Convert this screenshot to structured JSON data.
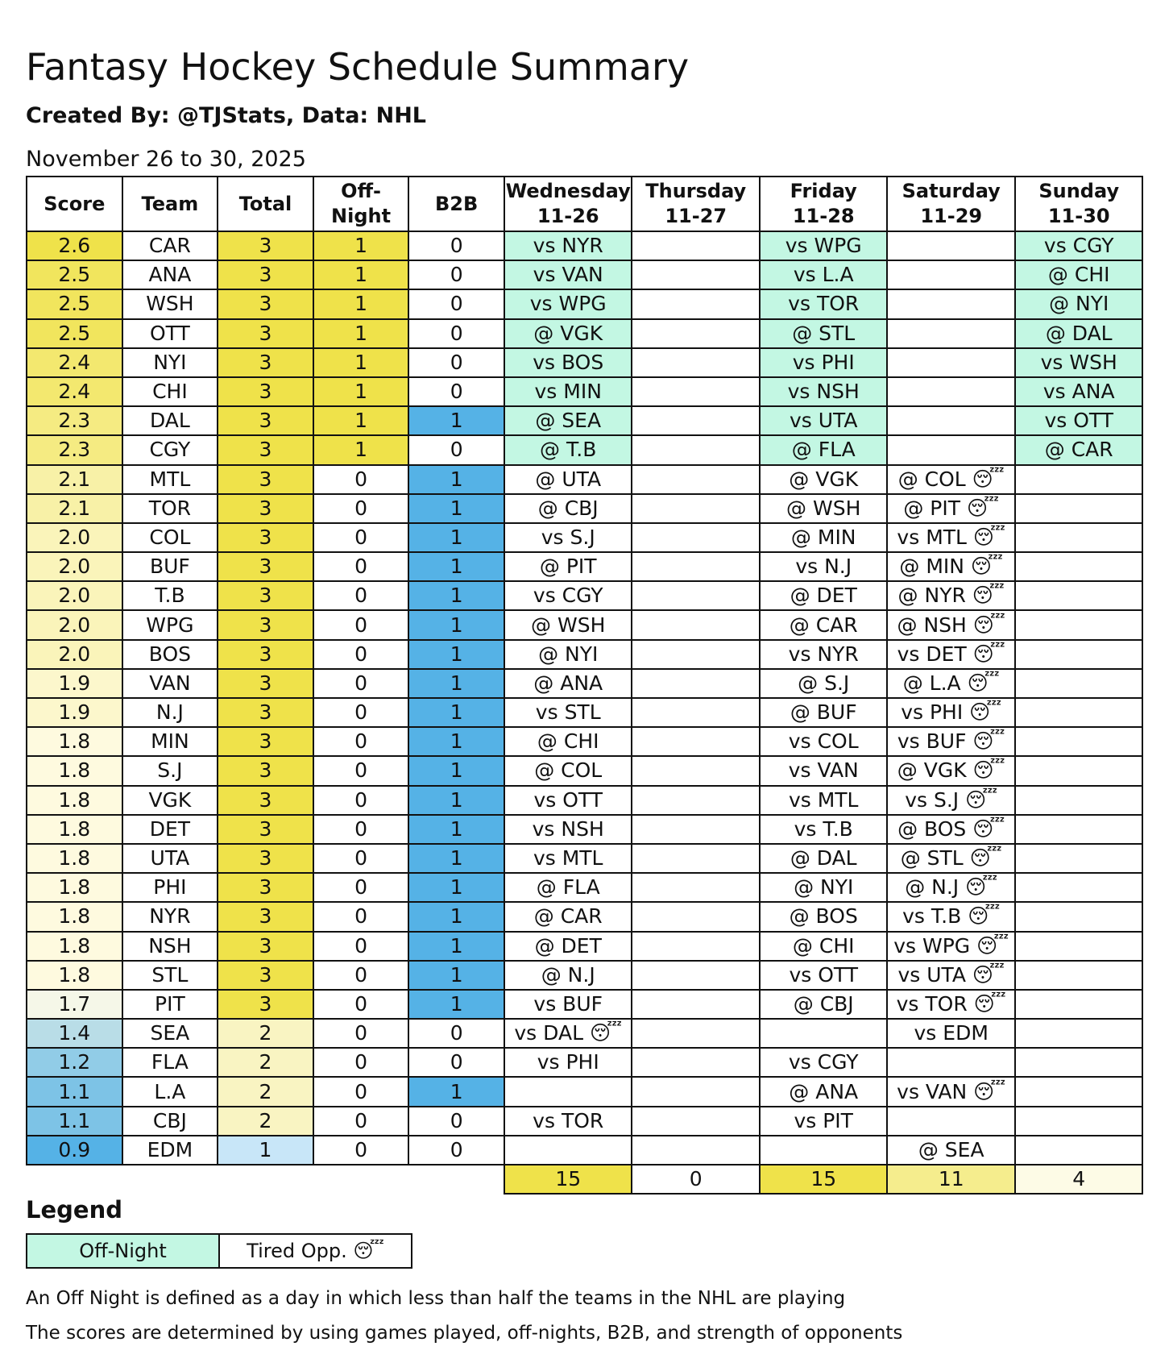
{
  "header": {
    "title": "Fantasy Hockey Schedule Summary",
    "subtitle": "Created By: @TJStats, Data: NHL",
    "date_range": "November 26 to 30, 2025"
  },
  "table": {
    "columns": [
      "Score",
      "Team",
      "Total",
      "Off-\nNight",
      "B2B",
      "Wednesday\n11-26",
      "Thursday\n11-27",
      "Friday\n11-28",
      "Saturday\n11-29",
      "Sunday\n11-30"
    ],
    "rows": [
      [
        "2.6",
        "CAR",
        "3",
        "1",
        "0",
        "vs NYR",
        null,
        "vs WPG",
        null,
        "vs CGY"
      ],
      [
        "2.5",
        "ANA",
        "3",
        "1",
        "0",
        "vs VAN",
        null,
        "vs L.A",
        null,
        "@ CHI"
      ],
      [
        "2.5",
        "WSH",
        "3",
        "1",
        "0",
        "vs WPG",
        null,
        "vs TOR",
        null,
        "@ NYI"
      ],
      [
        "2.5",
        "OTT",
        "3",
        "1",
        "0",
        "@ VGK",
        null,
        "@ STL",
        null,
        "@ DAL"
      ],
      [
        "2.4",
        "NYI",
        "3",
        "1",
        "0",
        "vs BOS",
        null,
        "vs PHI",
        null,
        "vs WSH"
      ],
      [
        "2.4",
        "CHI",
        "3",
        "1",
        "0",
        "vs MIN",
        null,
        "vs NSH",
        null,
        "vs ANA"
      ],
      [
        "2.3",
        "DAL",
        "3",
        "1",
        "1",
        "@ SEA",
        null,
        "vs UTA",
        null,
        "vs OTT"
      ],
      [
        "2.3",
        "CGY",
        "3",
        "1",
        "0",
        "@ T.B",
        null,
        "@ FLA",
        null,
        "@ CAR"
      ],
      [
        "2.1",
        "MTL",
        "3",
        "0",
        "1",
        "@ UTA",
        null,
        "@ VGK",
        "@ COL 😴",
        null
      ],
      [
        "2.1",
        "TOR",
        "3",
        "0",
        "1",
        "@ CBJ",
        null,
        "@ WSH",
        "@ PIT 😴",
        null
      ],
      [
        "2.0",
        "COL",
        "3",
        "0",
        "1",
        "vs S.J",
        null,
        "@ MIN",
        "vs MTL 😴",
        null
      ],
      [
        "2.0",
        "BUF",
        "3",
        "0",
        "1",
        "@ PIT",
        null,
        "vs N.J",
        "@ MIN 😴",
        null
      ],
      [
        "2.0",
        "T.B",
        "3",
        "0",
        "1",
        "vs CGY",
        null,
        "@ DET",
        "@ NYR 😴",
        null
      ],
      [
        "2.0",
        "WPG",
        "3",
        "0",
        "1",
        "@ WSH",
        null,
        "@ CAR",
        "@ NSH 😴",
        null
      ],
      [
        "2.0",
        "BOS",
        "3",
        "0",
        "1",
        "@ NYI",
        null,
        "vs NYR",
        "vs DET 😴",
        null
      ],
      [
        "1.9",
        "VAN",
        "3",
        "0",
        "1",
        "@ ANA",
        null,
        "@ S.J",
        "@ L.A 😴",
        null
      ],
      [
        "1.9",
        "N.J",
        "3",
        "0",
        "1",
        "vs STL",
        null,
        "@ BUF",
        "vs PHI 😴",
        null
      ],
      [
        "1.8",
        "MIN",
        "3",
        "0",
        "1",
        "@ CHI",
        null,
        "vs COL",
        "vs BUF 😴",
        null
      ],
      [
        "1.8",
        "S.J",
        "3",
        "0",
        "1",
        "@ COL",
        null,
        "vs VAN",
        "@ VGK 😴",
        null
      ],
      [
        "1.8",
        "VGK",
        "3",
        "0",
        "1",
        "vs OTT",
        null,
        "vs MTL",
        "vs S.J 😴",
        null
      ],
      [
        "1.8",
        "DET",
        "3",
        "0",
        "1",
        "vs NSH",
        null,
        "vs T.B",
        "@ BOS 😴",
        null
      ],
      [
        "1.8",
        "UTA",
        "3",
        "0",
        "1",
        "vs MTL",
        null,
        "@ DAL",
        "@ STL 😴",
        null
      ],
      [
        "1.8",
        "PHI",
        "3",
        "0",
        "1",
        "@ FLA",
        null,
        "@ NYI",
        "@ N.J 😴",
        null
      ],
      [
        "1.8",
        "NYR",
        "3",
        "0",
        "1",
        "@ CAR",
        null,
        "@ BOS",
        "vs T.B 😴",
        null
      ],
      [
        "1.8",
        "NSH",
        "3",
        "0",
        "1",
        "@ DET",
        null,
        "@ CHI",
        "vs WPG 😴",
        null
      ],
      [
        "1.8",
        "STL",
        "3",
        "0",
        "1",
        "@ N.J",
        null,
        "vs OTT",
        "vs UTA 😴",
        null
      ],
      [
        "1.7",
        "PIT",
        "3",
        "0",
        "1",
        "vs BUF",
        null,
        "@ CBJ",
        "vs TOR 😴",
        null
      ],
      [
        "1.4",
        "SEA",
        "2",
        "0",
        "0",
        "vs DAL 😴",
        null,
        null,
        "vs EDM",
        null
      ],
      [
        "1.2",
        "FLA",
        "2",
        "0",
        "0",
        "vs PHI",
        null,
        "vs CGY",
        null,
        null
      ],
      [
        "1.1",
        "L.A",
        "2",
        "0",
        "1",
        null,
        null,
        "@ ANA",
        "vs VAN 😴",
        null
      ],
      [
        "1.1",
        "CBJ",
        "2",
        "0",
        "0",
        "vs TOR",
        null,
        "vs PIT",
        null,
        null
      ],
      [
        "0.9",
        "EDM",
        "1",
        "0",
        "0",
        null,
        null,
        null,
        "@ SEA",
        null
      ]
    ],
    "totals": [
      "15",
      "0",
      "15",
      "11",
      "4"
    ]
  },
  "legend": {
    "title": "Legend",
    "items": [
      "Off-Night",
      "Tired Opp. 😴"
    ],
    "notes": [
      "An Off Night is defined as a day in which less than half the teams in the NHL are playing",
      "The scores are determined by using games played, off-nights, B2B, and strength of opponents"
    ]
  }
}
